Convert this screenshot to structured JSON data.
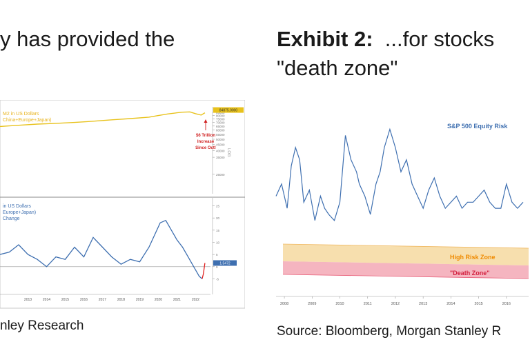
{
  "left_exhibit": {
    "title_line": "y has provided the",
    "source": "nley Research",
    "chart_data": [
      {
        "type": "line",
        "title": "M2 in US Dollars",
        "subtitle": "China+Europe+Japan)",
        "y_scale": "log",
        "ylim": [
          17000,
          95000
        ],
        "yticks": [
          "25000",
          "35000",
          "40000",
          "45000",
          "50000",
          "55000",
          "60000",
          "65000",
          "70000",
          "75000",
          "80000",
          "85000"
        ],
        "y_axis_label": "LOG",
        "series": [
          {
            "color": "#e8c21c",
            "x": [
              2012.0,
              2013.0,
              2014.0,
              2015.0,
              2016.0,
              2017.0,
              2018.0,
              2019.0,
              2020.0,
              2020.5,
              2021.0,
              2021.5,
              2021.8,
              2022.2,
              2022.5,
              2022.8,
              2023.0
            ],
            "values": [
              64500,
              66000,
              67500,
              68500,
              69800,
              71500,
              73500,
              75300,
              77500,
              80000,
              82500,
              84500,
              85500,
              86000,
              83000,
              80800,
              84500
            ]
          }
        ],
        "last_value_badge": "84875.0000",
        "annotation": [
          "$6 Trillion",
          "Increase",
          "Since Oct!"
        ]
      },
      {
        "type": "line",
        "title": "in US Dollars",
        "subtitle": "Europe+Japan)",
        "label": "Change",
        "ylim": [
          -8,
          26
        ],
        "yticks": [
          "25",
          "20",
          "15",
          "10",
          "5",
          "0",
          "-5"
        ],
        "x_tick_labels": [
          "2013",
          "2014",
          "2015",
          "2016",
          "2017",
          "2018",
          "2019",
          "2020",
          "2021",
          "2022"
        ],
        "series": [
          {
            "color": "#3e6fb0",
            "x": [
              2012.0,
              2012.5,
              2013.0,
              2013.5,
              2014.0,
              2014.5,
              2015.0,
              2015.5,
              2016.0,
              2016.5,
              2017.0,
              2017.5,
              2018.0,
              2018.5,
              2019.0,
              2019.5,
              2020.0,
              2020.3,
              2020.6,
              2020.9,
              2021.2,
              2021.5,
              2021.8,
              2022.1,
              2022.4,
              2022.7,
              2022.85
            ],
            "values": [
              5,
              6,
              9,
              5,
              3,
              0,
              4,
              3,
              8,
              4,
              12,
              8,
              4,
              1,
              3,
              2,
              8,
              13,
              18,
              19,
              15,
              11,
              8,
              4,
              0,
              -4,
              -5
            ]
          },
          {
            "color": "#e02020",
            "x": [
              2022.85,
              2022.92,
              2023.0
            ],
            "values": [
              -5,
              -3,
              1.5
            ]
          }
        ],
        "last_value_badge": "1.5472"
      }
    ]
  },
  "right_exhibit": {
    "exhibit_label": "Exhibit 2:",
    "title_line_1": "...for stocks",
    "title_line_2": "\"death zone\"",
    "source": "Source: Bloomberg, Morgan Stanley R",
    "chart_data": {
      "type": "line",
      "title": "S&P 500 Equity Risk",
      "x_tick_labels": [
        "2008",
        "2009",
        "2010",
        "2011",
        "2012",
        "2013",
        "2014",
        "2015",
        "2016"
      ],
      "series": [
        {
          "color": "#3e6fb0",
          "x": [
            2008.0,
            2008.2,
            2008.4,
            2008.55,
            2008.7,
            2008.85,
            2009.0,
            2009.2,
            2009.4,
            2009.6,
            2009.75,
            2009.9,
            2010.1,
            2010.3,
            2010.5,
            2010.7,
            2010.9,
            2011.0,
            2011.2,
            2011.4,
            2011.6,
            2011.75,
            2011.9,
            2012.1,
            2012.3,
            2012.5,
            2012.7,
            2012.9,
            2013.1,
            2013.3,
            2013.5,
            2013.7,
            2013.9,
            2014.1,
            2014.3,
            2014.5,
            2014.7,
            2014.9,
            2015.1,
            2015.3,
            2015.5,
            2015.7,
            2015.9,
            2016.1,
            2016.3,
            2016.5,
            2016.7,
            2016.9
          ],
          "values": [
            4.0,
            5.0,
            3.0,
            6.5,
            8.0,
            7.0,
            3.5,
            4.5,
            2.0,
            4.0,
            3.0,
            2.5,
            2.0,
            3.5,
            9.0,
            7.0,
            6.0,
            5.0,
            4.0,
            2.5,
            5.0,
            6.0,
            8.0,
            9.5,
            8.0,
            6.0,
            7.0,
            5.0,
            4.0,
            3.0,
            4.5,
            5.5,
            4.0,
            3.0,
            3.5,
            4.0,
            3.0,
            3.5,
            3.5,
            4.0,
            4.5,
            3.5,
            3.0,
            3.0,
            5.0,
            3.5,
            3.0,
            3.5
          ]
        }
      ],
      "zones": [
        {
          "label": "High Risk Zone",
          "color": "#f7dfae",
          "text_color": "#f08a00"
        },
        {
          "label": "\"Death Zone\"",
          "color": "#f5b5c0",
          "text_color": "#d3203e"
        }
      ]
    }
  }
}
